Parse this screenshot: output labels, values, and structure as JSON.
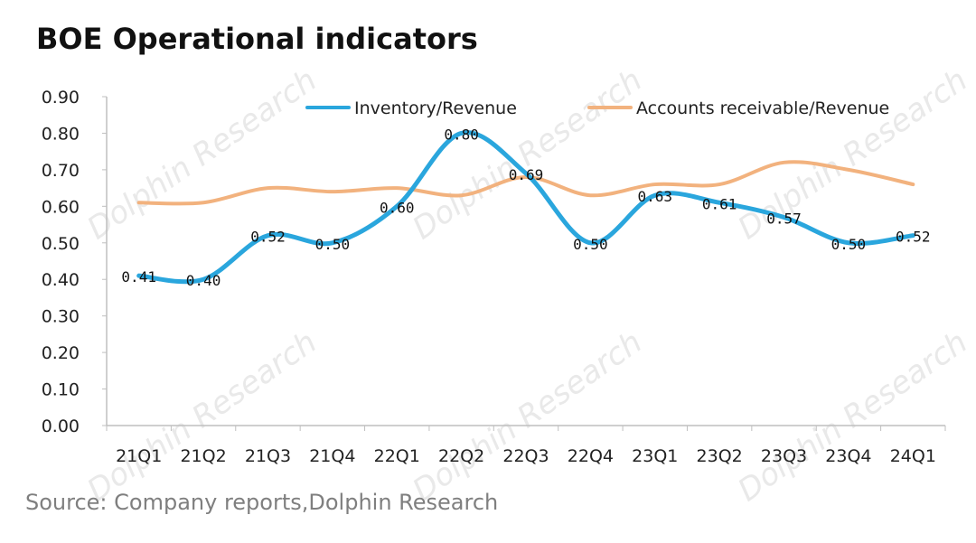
{
  "title": "BOE Operational indicators",
  "source": "Source: Company reports,Dolphin Research",
  "watermark": "Dolphin Research",
  "colors": {
    "series1": "#2aa6dd",
    "series2": "#f2b27e",
    "axis": "#bfbfbf",
    "text": "#222222"
  },
  "chart_data": {
    "type": "line",
    "categories": [
      "21Q1",
      "21Q2",
      "21Q3",
      "21Q4",
      "22Q1",
      "22Q2",
      "22Q3",
      "22Q4",
      "23Q1",
      "23Q2",
      "23Q3",
      "23Q4",
      "24Q1"
    ],
    "ylim": [
      0,
      0.9
    ],
    "yticks": [
      "0.00",
      "0.10",
      "0.20",
      "0.30",
      "0.40",
      "0.50",
      "0.60",
      "0.70",
      "0.80",
      "0.90"
    ],
    "grid": false,
    "legend_position": "top",
    "series": [
      {
        "name": "Inventory/Revenue",
        "values": [
          0.41,
          0.4,
          0.52,
          0.5,
          0.6,
          0.8,
          0.69,
          0.5,
          0.63,
          0.61,
          0.57,
          0.5,
          0.52
        ],
        "labels": [
          "0.41",
          "0.40",
          "0.52",
          "0.50",
          "0.60",
          "0.80",
          "0.69",
          "0.50",
          "0.63",
          "0.61",
          "0.57",
          "0.50",
          "0.52"
        ]
      },
      {
        "name": "Accounts receivable/Revenue",
        "values": [
          0.61,
          0.61,
          0.65,
          0.64,
          0.65,
          0.63,
          0.68,
          0.63,
          0.66,
          0.66,
          0.72,
          0.7,
          0.66
        ]
      }
    ]
  }
}
